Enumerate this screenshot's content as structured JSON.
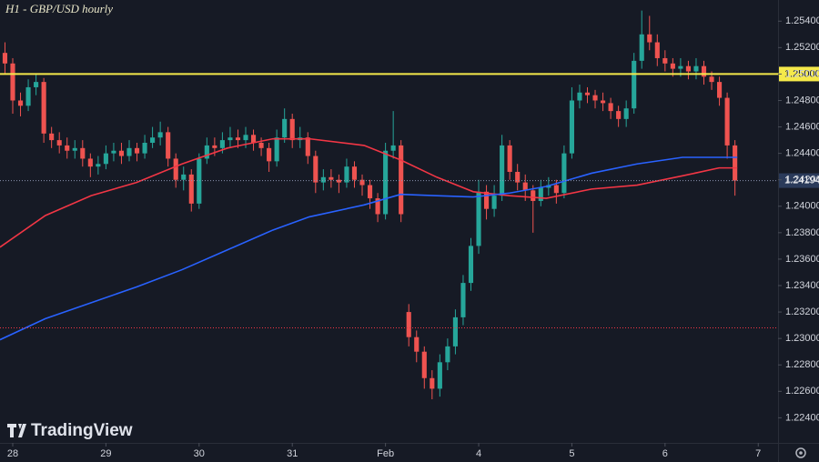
{
  "chart_data": {
    "type": "candlestick",
    "title": "H1 - GBP/USD hourly",
    "watermark": "TradingView",
    "up_color": "#26a69a",
    "down_color": "#ef5350",
    "xlim": [
      -3.28,
      197.1
    ],
    "ylim": [
      1.2221,
      1.2556
    ],
    "grid": false,
    "xticks": [
      {
        "value": 0,
        "label": "28"
      },
      {
        "value": 24,
        "label": "29"
      },
      {
        "value": 48,
        "label": "30"
      },
      {
        "value": 72,
        "label": "31"
      },
      {
        "value": 96,
        "label": "Feb"
      },
      {
        "value": 120,
        "label": "4"
      },
      {
        "value": 144,
        "label": "5"
      },
      {
        "value": 168,
        "label": "6"
      },
      {
        "value": 192,
        "label": "7"
      }
    ],
    "yticks": [
      {
        "value": 1.224,
        "label": "1.22400"
      },
      {
        "value": 1.226,
        "label": "1.22600"
      },
      {
        "value": 1.228,
        "label": "1.22800"
      },
      {
        "value": 1.23,
        "label": "1.23000"
      },
      {
        "value": 1.232,
        "label": "1.23200"
      },
      {
        "value": 1.234,
        "label": "1.23400"
      },
      {
        "value": 1.236,
        "label": "1.23600"
      },
      {
        "value": 1.238,
        "label": "1.23800"
      },
      {
        "value": 1.24,
        "label": "1.24000"
      },
      {
        "value": 1.242,
        "label": "1.24200"
      },
      {
        "value": 1.244,
        "label": "1.24400"
      },
      {
        "value": 1.246,
        "label": "1.24600"
      },
      {
        "value": 1.248,
        "label": "1.24800"
      },
      {
        "value": 1.25,
        "label": "1.25000"
      },
      {
        "value": 1.252,
        "label": "1.25200"
      },
      {
        "value": 1.254,
        "label": "1.25400"
      }
    ],
    "x": [
      -2,
      0,
      2,
      4,
      6,
      8,
      10,
      12,
      14,
      16,
      18,
      20,
      22,
      24,
      26,
      28,
      30,
      32,
      34,
      36,
      38,
      40,
      42,
      44,
      46,
      48,
      50,
      52,
      54,
      56,
      58,
      60,
      62,
      64,
      66,
      68,
      70,
      72,
      74,
      76,
      78,
      80,
      82,
      84,
      86,
      88,
      90,
      92,
      94,
      96,
      98,
      100,
      102,
      104,
      106,
      108,
      110,
      112,
      114,
      116,
      118,
      120,
      122,
      124,
      126,
      128,
      130,
      132,
      134,
      136,
      138,
      140,
      142,
      144,
      146,
      148,
      150,
      152,
      154,
      156,
      158,
      160,
      162,
      164,
      166,
      168,
      170,
      172,
      174,
      176,
      178,
      180,
      182,
      184,
      186
    ],
    "open": [
      1.2516,
      1.2508,
      1.248,
      1.2476,
      1.249,
      1.2494,
      1.2455,
      1.245,
      1.2446,
      1.2442,
      1.2444,
      1.2436,
      1.243,
      1.2432,
      1.244,
      1.2442,
      1.2438,
      1.2444,
      1.244,
      1.2448,
      1.2452,
      1.2456,
      1.2436,
      1.242,
      1.2424,
      1.2402,
      1.2436,
      1.2446,
      1.2444,
      1.245,
      1.2452,
      1.245,
      1.2454,
      1.2448,
      1.2444,
      1.2434,
      1.2452,
      1.2466,
      1.245,
      1.2452,
      1.2438,
      1.2418,
      1.2422,
      1.242,
      1.2418,
      1.243,
      1.242,
      1.2416,
      1.2406,
      1.2394,
      1.2442,
      1.2446,
      1.232,
      1.2301,
      1.229,
      1.227,
      1.2262,
      1.2282,
      1.2294,
      1.2316,
      1.2342,
      1.237,
      1.2411,
      1.2398,
      1.2408,
      1.2446,
      1.2426,
      1.2418,
      1.2412,
      1.2404,
      1.2414,
      1.2416,
      1.241,
      1.244,
      1.248,
      1.2486,
      1.2484,
      1.248,
      1.2478,
      1.2472,
      1.2466,
      1.2474,
      1.251,
      1.253,
      1.2524,
      1.2512,
      1.2508,
      1.2504,
      1.2506,
      1.2502,
      1.2506,
      1.2498,
      1.2494,
      1.2482,
      1.2446
    ],
    "high": [
      1.2524,
      1.2512,
      1.2486,
      1.2496,
      1.25,
      1.2497,
      1.246,
      1.2456,
      1.2452,
      1.245,
      1.245,
      1.244,
      1.2438,
      1.2446,
      1.2448,
      1.2448,
      1.245,
      1.2448,
      1.2454,
      1.246,
      1.2464,
      1.246,
      1.244,
      1.243,
      1.2428,
      1.244,
      1.2452,
      1.2452,
      1.2456,
      1.246,
      1.2458,
      1.246,
      1.2458,
      1.2452,
      1.2448,
      1.2458,
      1.2474,
      1.247,
      1.246,
      1.2456,
      1.2442,
      1.2428,
      1.2428,
      1.2424,
      1.2436,
      1.2434,
      1.2424,
      1.242,
      1.241,
      1.2448,
      1.2472,
      1.245,
      1.2326,
      1.2306,
      1.2294,
      1.2276,
      1.2288,
      1.23,
      1.2322,
      1.2348,
      1.2376,
      1.242,
      1.2416,
      1.2416,
      1.2454,
      1.245,
      1.2432,
      1.2424,
      1.2416,
      1.242,
      1.2422,
      1.242,
      1.2446,
      1.249,
      1.2492,
      1.249,
      1.2488,
      1.2486,
      1.2482,
      1.2476,
      1.248,
      1.2516,
      1.2548,
      1.2544,
      1.253,
      1.2518,
      1.2512,
      1.2512,
      1.251,
      1.2512,
      1.251,
      1.2502,
      1.2498,
      1.2486,
      1.245
    ],
    "low": [
      1.25,
      1.247,
      1.2468,
      1.2472,
      1.2484,
      1.2448,
      1.2444,
      1.244,
      1.2436,
      1.2436,
      1.243,
      1.2422,
      1.2424,
      1.2428,
      1.2434,
      1.2432,
      1.2434,
      1.2434,
      1.2436,
      1.2444,
      1.2446,
      1.243,
      1.2414,
      1.2412,
      1.2396,
      1.2398,
      1.2432,
      1.2438,
      1.244,
      1.2444,
      1.2444,
      1.2444,
      1.2442,
      1.2438,
      1.2426,
      1.243,
      1.2448,
      1.2444,
      1.2444,
      1.2432,
      1.241,
      1.2412,
      1.2414,
      1.241,
      1.2414,
      1.2414,
      1.2408,
      1.2398,
      1.2388,
      1.239,
      1.2436,
      1.2388,
      1.2294,
      1.2282,
      1.2262,
      1.2254,
      1.2256,
      1.2276,
      1.2288,
      1.231,
      1.2336,
      1.2364,
      1.239,
      1.2392,
      1.2404,
      1.242,
      1.2412,
      1.2404,
      1.238,
      1.24,
      1.2408,
      1.2402,
      1.2406,
      1.2436,
      1.2474,
      1.2478,
      1.2474,
      1.2472,
      1.2466,
      1.246,
      1.246,
      1.247,
      1.2504,
      1.2518,
      1.2506,
      1.2502,
      1.2498,
      1.2498,
      1.2496,
      1.2496,
      1.2492,
      1.2488,
      1.2476,
      1.2436,
      1.2408
    ],
    "close": [
      1.2508,
      1.248,
      1.2476,
      1.249,
      1.2494,
      1.2455,
      1.245,
      1.2446,
      1.2442,
      1.2444,
      1.2436,
      1.243,
      1.2432,
      1.244,
      1.2442,
      1.2438,
      1.2444,
      1.244,
      1.2448,
      1.2452,
      1.2456,
      1.2436,
      1.242,
      1.2424,
      1.2402,
      1.2436,
      1.2446,
      1.2444,
      1.245,
      1.2452,
      1.245,
      1.2454,
      1.2448,
      1.2444,
      1.2434,
      1.2452,
      1.2466,
      1.245,
      1.2452,
      1.2438,
      1.2418,
      1.2422,
      1.242,
      1.2418,
      1.243,
      1.242,
      1.2416,
      1.2406,
      1.2394,
      1.2442,
      1.2446,
      1.2394,
      1.2301,
      1.229,
      1.227,
      1.2262,
      1.2282,
      1.2294,
      1.2316,
      1.2342,
      1.237,
      1.2411,
      1.2398,
      1.2408,
      1.2446,
      1.2426,
      1.2418,
      1.2412,
      1.2404,
      1.2414,
      1.2416,
      1.241,
      1.244,
      1.248,
      1.2486,
      1.2484,
      1.248,
      1.2478,
      1.2472,
      1.2466,
      1.2474,
      1.251,
      1.253,
      1.2524,
      1.2512,
      1.2508,
      1.2504,
      1.2506,
      1.2502,
      1.2506,
      1.2498,
      1.2494,
      1.2482,
      1.2446,
      1.24194
    ],
    "series": [
      {
        "color": "#f23645",
        "x": [
          -3.3,
          8.4,
          20.2,
          31.9,
          43.6,
          55.3,
          67,
          76.4,
          90.5,
          99.9,
          109.2,
          118.6,
          128,
          137.4,
          149.1,
          160.8,
          172.5,
          181.9,
          186.6
        ],
        "values": [
          1.2369,
          1.2393,
          1.2408,
          1.2418,
          1.2432,
          1.2444,
          1.2451,
          1.2451,
          1.2446,
          1.2435,
          1.2422,
          1.2411,
          1.2408,
          1.2406,
          1.2413,
          1.2416,
          1.2423,
          1.2429,
          1.2429
        ]
      },
      {
        "color": "#2962ff",
        "x": [
          -3.3,
          8.4,
          20.2,
          31.9,
          43.6,
          55.3,
          67,
          76.4,
          90.5,
          99.9,
          109.2,
          118.6,
          128,
          137.4,
          149.1,
          160.8,
          172.5,
          181.9,
          186.6
        ],
        "values": [
          1.2299,
          1.2315,
          1.2327,
          1.2339,
          1.2352,
          1.2367,
          1.2382,
          1.2392,
          1.2401,
          1.2409,
          1.2408,
          1.2407,
          1.241,
          1.2415,
          1.2425,
          1.2432,
          1.2437,
          1.2437,
          1.2437
        ]
      }
    ],
    "hlines": [
      {
        "value": 1.25,
        "color": "#f5e94a",
        "label": "1.25000"
      },
      {
        "value": 1.2308,
        "color": "#f23645"
      }
    ],
    "last_price": {
      "value": 1.24194,
      "label": "1.24194",
      "color": "#8a94b0"
    }
  }
}
